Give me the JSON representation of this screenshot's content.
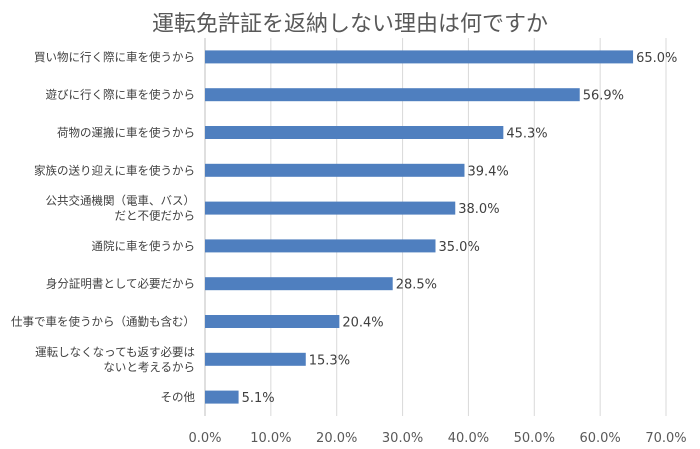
{
  "chart_data": {
    "type": "bar",
    "orientation": "horizontal",
    "title": "運転免許証を返納しない理由は何ですか",
    "categories": [
      [
        "買い物に行く際に車を使うから"
      ],
      [
        "遊びに行く際に車を使うから"
      ],
      [
        "荷物の運搬に車を使うから"
      ],
      [
        "家族の送り迎えに車を使うから"
      ],
      [
        "公共交通機関（電車、バス）",
        "だと不便だから"
      ],
      [
        "通院に車を使うから"
      ],
      [
        "身分証明書として必要だから"
      ],
      [
        "仕事で車を使うから（通勤も含む）"
      ],
      [
        "運転しなくなっても返す必要は",
        "ないと考えるから"
      ],
      [
        "その他"
      ]
    ],
    "values": [
      65.0,
      56.9,
      45.3,
      39.4,
      38.0,
      35.0,
      28.5,
      20.4,
      15.3,
      5.1
    ],
    "data_labels": [
      "65.0%",
      "56.9%",
      "45.3%",
      "39.4%",
      "38.0%",
      "35.0%",
      "28.5%",
      "20.4%",
      "15.3%",
      "5.1%"
    ],
    "xlim": [
      0,
      70
    ],
    "x_ticks": [
      "0.0%",
      "10.0%",
      "20.0%",
      "30.0%",
      "40.0%",
      "50.0%",
      "60.0%",
      "70.0%"
    ],
    "grid": true,
    "bar_color": "#4f7fbf"
  }
}
